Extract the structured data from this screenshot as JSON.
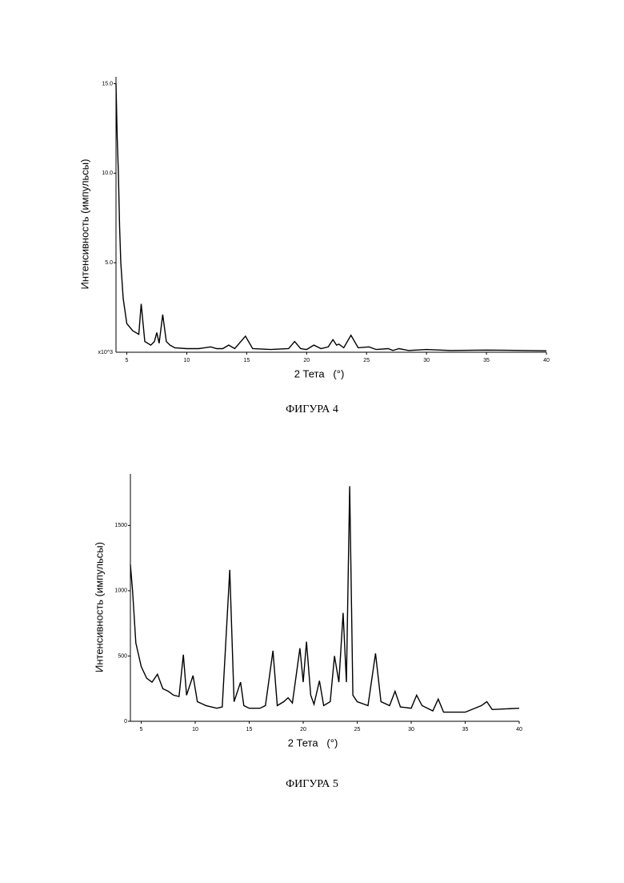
{
  "chart_data": [
    {
      "type": "line",
      "caption": "ФИГУРА 4",
      "x_label": "2 Тета   (°)",
      "y_label": "Интенсивность (импульсы)",
      "y_multiplier": "x10^3",
      "x": [
        4.1,
        4.2,
        4.3,
        4.4,
        4.5,
        4.7,
        5.0,
        5.5,
        6.0,
        6.2,
        6.5,
        7.0,
        7.3,
        7.5,
        7.7,
        8.0,
        8.3,
        8.6,
        9.0,
        10.0,
        11.0,
        12.0,
        12.5,
        13.0,
        13.5,
        14.0,
        14.9,
        15.5,
        17.0,
        18.5,
        19.0,
        19.5,
        20.0,
        20.6,
        21.2,
        21.8,
        22.2,
        22.5,
        22.7,
        23.1,
        23.7,
        24.3,
        25.2,
        25.8,
        26.8,
        27.2,
        27.7,
        28.5,
        30.0,
        32.0,
        35.0,
        38.0,
        40.0
      ],
      "values": [
        15.0,
        12.0,
        10.0,
        7.0,
        5.0,
        3.0,
        1.6,
        1.2,
        1.0,
        2.7,
        0.6,
        0.4,
        0.6,
        1.1,
        0.5,
        2.1,
        0.6,
        0.4,
        0.25,
        0.2,
        0.2,
        0.3,
        0.2,
        0.2,
        0.4,
        0.2,
        0.9,
        0.2,
        0.15,
        0.2,
        0.6,
        0.2,
        0.15,
        0.4,
        0.2,
        0.3,
        0.7,
        0.4,
        0.45,
        0.25,
        0.95,
        0.25,
        0.3,
        0.15,
        0.2,
        0.1,
        0.2,
        0.1,
        0.15,
        0.1,
        0.12,
        0.1,
        0.08
      ],
      "xlim": [
        4.1,
        40
      ],
      "xticks": [
        5,
        10,
        15,
        20,
        25,
        30,
        35,
        40
      ],
      "ylim": [
        0,
        15.2
      ],
      "yticks": [
        {
          "value": 5,
          "label": "5.0"
        },
        {
          "value": 10,
          "label": "10.0"
        },
        {
          "value": 15,
          "label": "15.0"
        }
      ]
    },
    {
      "type": "line",
      "caption": "ФИГУРА 5",
      "x_label": "2 Тета   (°)",
      "y_label": "Интенсивность (импульсы)",
      "x": [
        4.0,
        4.2,
        4.5,
        5.0,
        5.5,
        6.0,
        6.5,
        7.0,
        7.5,
        8.0,
        8.5,
        8.9,
        9.2,
        9.8,
        10.2,
        11.0,
        12.0,
        12.5,
        13.2,
        13.6,
        14.2,
        14.5,
        15.0,
        16.0,
        16.5,
        17.2,
        17.6,
        18.2,
        18.6,
        19.0,
        19.7,
        20.0,
        20.3,
        20.7,
        21.0,
        21.5,
        21.9,
        22.5,
        22.9,
        23.3,
        23.7,
        24.0,
        24.3,
        24.6,
        25.0,
        26.0,
        26.7,
        27.2,
        28.0,
        28.5,
        29.0,
        30.0,
        30.5,
        31.0,
        32.0,
        32.5,
        33.0,
        35.0,
        36.5,
        37.0,
        37.5,
        40.0
      ],
      "values": [
        1200,
        1000,
        600,
        420,
        330,
        300,
        360,
        250,
        230,
        200,
        190,
        510,
        200,
        350,
        150,
        120,
        100,
        110,
        1160,
        150,
        300,
        120,
        100,
        100,
        120,
        540,
        120,
        150,
        180,
        140,
        560,
        300,
        610,
        200,
        130,
        310,
        120,
        150,
        500,
        300,
        830,
        300,
        1800,
        200,
        150,
        120,
        520,
        150,
        120,
        230,
        110,
        100,
        200,
        120,
        80,
        170,
        70,
        70,
        120,
        150,
        90,
        100
      ],
      "xlim": [
        4.0,
        40
      ],
      "xticks": [
        5,
        10,
        15,
        20,
        25,
        30,
        35,
        40
      ],
      "ylim": [
        0,
        1870
      ],
      "yticks": [
        0,
        500,
        1000,
        1500
      ]
    }
  ]
}
